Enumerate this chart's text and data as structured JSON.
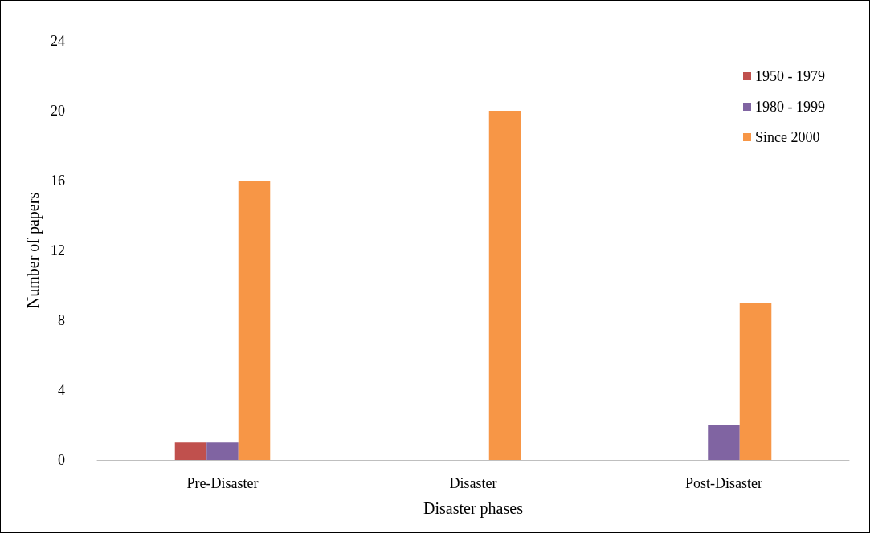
{
  "chart_data": {
    "type": "bar",
    "xlabel": "Disaster phases",
    "ylabel": "Number of papers",
    "categories": [
      "Pre-Disaster",
      "Disaster",
      "Post-Disaster"
    ],
    "series": [
      {
        "name": "1950 - 1979",
        "color": "#c0504d",
        "values": [
          1,
          0,
          0
        ]
      },
      {
        "name": "1980 - 1999",
        "color": "#8064a2",
        "values": [
          1,
          0,
          2
        ]
      },
      {
        "name": "Since 2000",
        "color": "#f79646",
        "values": [
          16,
          20,
          9
        ]
      }
    ],
    "ylim": [
      0,
      24
    ],
    "yticks": [
      0,
      4,
      8,
      12,
      16,
      20,
      24
    ],
    "grid": false,
    "legend": "top right"
  }
}
